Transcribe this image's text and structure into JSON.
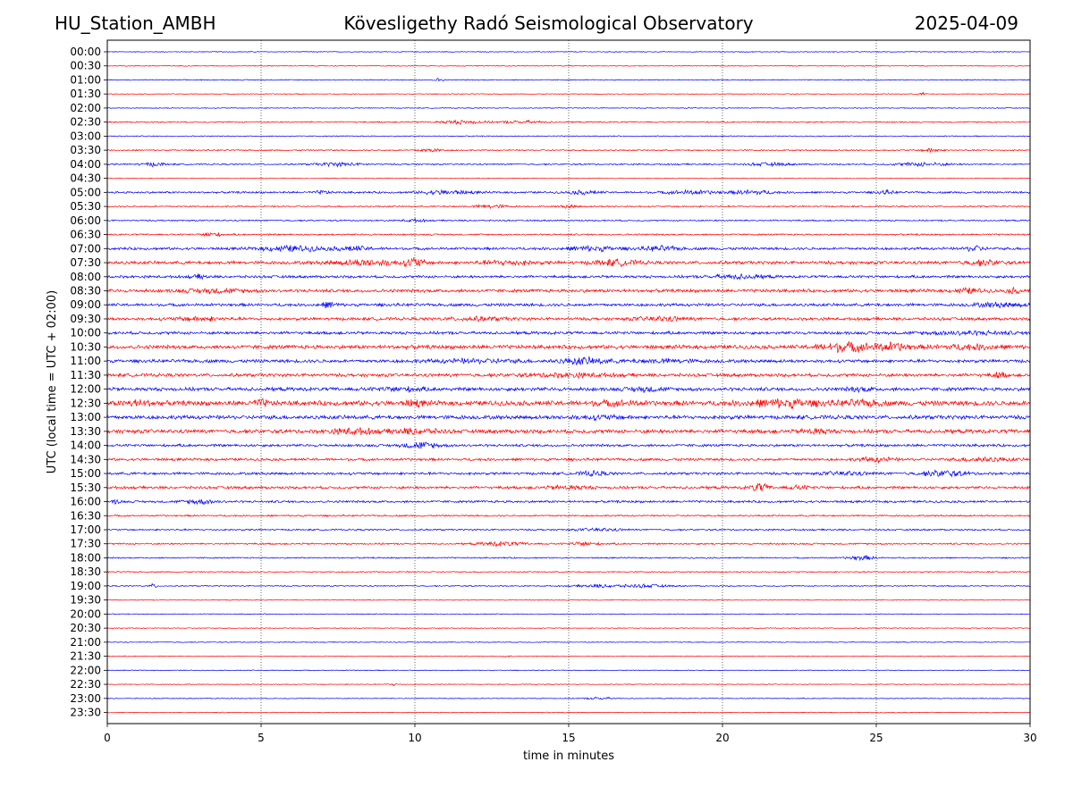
{
  "header": {
    "station": "HU_Station_AMBH",
    "observatory": "Kövesligethy Radó Seismological Observatory",
    "date": "2025-04-09"
  },
  "chart_data": {
    "type": "line",
    "title": "Kövesligethy Radó Seismological Observatory",
    "xlabel": "time in minutes",
    "ylabel": "UTC (local time = UTC + 02:00)",
    "xlim": [
      0,
      30
    ],
    "x_ticks": [
      0,
      5,
      10,
      15,
      20,
      25,
      30
    ],
    "grid": "vertical dotted lines at every 5 minutes",
    "colors": {
      "even_rows": "#0000ff",
      "odd_rows": "#ff0000",
      "grid": "#000000"
    },
    "rows": [
      {
        "label": "00:00",
        "amplitude": 0.5,
        "bursts": []
      },
      {
        "label": "00:30",
        "amplitude": 0.5,
        "bursts": []
      },
      {
        "label": "01:00",
        "amplitude": 0.6,
        "bursts": [
          [
            10.8,
            0.2,
            2
          ]
        ]
      },
      {
        "label": "01:30",
        "amplitude": 0.5,
        "bursts": [
          [
            26.5,
            0.2,
            1.5
          ]
        ]
      },
      {
        "label": "02:00",
        "amplitude": 0.5,
        "bursts": []
      },
      {
        "label": "02:30",
        "amplitude": 0.8,
        "bursts": [
          [
            11.5,
            1.0,
            2
          ],
          [
            13.5,
            1.0,
            1.5
          ]
        ]
      },
      {
        "label": "03:00",
        "amplitude": 0.6,
        "bursts": []
      },
      {
        "label": "03:30",
        "amplitude": 0.8,
        "bursts": [
          [
            10.5,
            0.6,
            1.8
          ],
          [
            26.8,
            0.4,
            2.5
          ]
        ]
      },
      {
        "label": "04:00",
        "amplitude": 0.9,
        "bursts": [
          [
            1.5,
            0.6,
            2
          ],
          [
            7.5,
            1.0,
            2
          ],
          [
            21.5,
            1.0,
            1.6
          ],
          [
            26.5,
            1.2,
            2
          ]
        ]
      },
      {
        "label": "04:30",
        "amplitude": 0.5,
        "bursts": []
      },
      {
        "label": "05:00",
        "amplitude": 1.2,
        "bursts": [
          [
            7,
            0.3,
            2
          ],
          [
            11,
            1.2,
            2.2
          ],
          [
            15.5,
            0.7,
            2
          ],
          [
            19,
            1.2,
            2
          ],
          [
            21,
            0.9,
            2.4
          ],
          [
            25.3,
            0.4,
            2
          ]
        ]
      },
      {
        "label": "05:30",
        "amplitude": 0.9,
        "bursts": [
          [
            12.5,
            0.8,
            2
          ],
          [
            15,
            0.4,
            1.8
          ]
        ]
      },
      {
        "label": "06:00",
        "amplitude": 0.9,
        "bursts": [
          [
            10,
            0.5,
            1.5
          ]
        ]
      },
      {
        "label": "06:30",
        "amplitude": 1.0,
        "bursts": [
          [
            3.4,
            0.4,
            3
          ]
        ]
      },
      {
        "label": "07:00",
        "amplitude": 1.6,
        "bursts": [
          [
            6,
            1.4,
            3
          ],
          [
            8,
            0.8,
            2.5
          ],
          [
            15.8,
            1.2,
            2.4
          ],
          [
            18,
            0.8,
            2.5
          ],
          [
            28.2,
            0.4,
            3.2
          ]
        ]
      },
      {
        "label": "07:30",
        "amplitude": 2.0,
        "bursts": [
          [
            8.5,
            1.6,
            3
          ],
          [
            10,
            0.4,
            5
          ],
          [
            13,
            1.2,
            2.2
          ],
          [
            16.5,
            1.0,
            3
          ],
          [
            28.5,
            0.8,
            2.5
          ]
        ]
      },
      {
        "label": "08:00",
        "amplitude": 1.6,
        "bursts": [
          [
            3,
            0.4,
            2
          ],
          [
            20.5,
            1.2,
            2.2
          ]
        ]
      },
      {
        "label": "08:30",
        "amplitude": 2.0,
        "bursts": [
          [
            3.5,
            1.4,
            2
          ],
          [
            28,
            0.6,
            2.6
          ],
          [
            29.5,
            0.3,
            2.6
          ]
        ]
      },
      {
        "label": "09:00",
        "amplitude": 1.8,
        "bursts": [
          [
            7.2,
            0.4,
            3
          ],
          [
            29,
            1.2,
            2.2
          ]
        ]
      },
      {
        "label": "09:30",
        "amplitude": 1.8,
        "bursts": [
          [
            3,
            1.2,
            2
          ],
          [
            12,
            1.4,
            1.6
          ],
          [
            18,
            1.2,
            2.2
          ]
        ]
      },
      {
        "label": "10:00",
        "amplitude": 1.8,
        "bursts": [
          [
            28,
            2.0,
            1.8
          ]
        ]
      },
      {
        "label": "10:30",
        "amplitude": 2.4,
        "bursts": [
          [
            24,
            1.2,
            5
          ],
          [
            25.5,
            0.8,
            4
          ],
          [
            28,
            1.6,
            2.2
          ]
        ]
      },
      {
        "label": "11:00",
        "amplitude": 2.0,
        "bursts": [
          [
            15.5,
            1.0,
            3.5
          ],
          [
            12,
            2.0,
            1.6
          ],
          [
            18,
            1.6,
            1.6
          ]
        ]
      },
      {
        "label": "11:30",
        "amplitude": 2.0,
        "bursts": [
          [
            15,
            2.0,
            1.8
          ],
          [
            29,
            0.3,
            3
          ]
        ]
      },
      {
        "label": "12:00",
        "amplitude": 2.2,
        "bursts": [
          [
            9.5,
            1.0,
            2
          ],
          [
            17.5,
            0.8,
            2.2
          ],
          [
            24.5,
            0.6,
            2
          ]
        ]
      },
      {
        "label": "12:30",
        "amplitude": 3.0,
        "bursts": [
          [
            1,
            0.8,
            2.6
          ],
          [
            5,
            0.4,
            3
          ],
          [
            10,
            0.4,
            3
          ],
          [
            16.5,
            1.2,
            1.8
          ],
          [
            22,
            1.6,
            3.8
          ],
          [
            24.5,
            1.0,
            2.5
          ]
        ]
      },
      {
        "label": "13:00",
        "amplitude": 2.4,
        "bursts": [
          [
            16,
            1.2,
            1.5
          ]
        ]
      },
      {
        "label": "13:30",
        "amplitude": 2.4,
        "bursts": [
          [
            8,
            1.0,
            3
          ],
          [
            10,
            1.0,
            2.6
          ],
          [
            23,
            0.6,
            2.6
          ]
        ]
      },
      {
        "label": "14:00",
        "amplitude": 1.6,
        "bursts": [
          [
            10.2,
            0.8,
            3.5
          ]
        ]
      },
      {
        "label": "14:30",
        "amplitude": 1.6,
        "bursts": [
          [
            25,
            0.8,
            2.4
          ],
          [
            28.5,
            1.2,
            2.2
          ]
        ]
      },
      {
        "label": "15:00",
        "amplitude": 1.6,
        "bursts": [
          [
            15.8,
            0.6,
            2.4
          ],
          [
            24,
            1.0,
            2
          ],
          [
            27.2,
            1.0,
            3.4
          ]
        ]
      },
      {
        "label": "15:30",
        "amplitude": 1.6,
        "bursts": [
          [
            15,
            1.0,
            2
          ],
          [
            21.2,
            0.4,
            5
          ],
          [
            22.5,
            0.6,
            1.8
          ]
        ]
      },
      {
        "label": "16:00",
        "amplitude": 1.4,
        "bursts": [
          [
            3,
            0.7,
            2.6
          ],
          [
            0.3,
            0.2,
            2.2
          ]
        ]
      },
      {
        "label": "16:30",
        "amplitude": 1.0,
        "bursts": []
      },
      {
        "label": "17:00",
        "amplitude": 1.0,
        "bursts": [
          [
            16,
            1.0,
            1.5
          ]
        ]
      },
      {
        "label": "17:30",
        "amplitude": 1.0,
        "bursts": [
          [
            12.8,
            1.0,
            2.4
          ],
          [
            15.5,
            0.6,
            2.4
          ]
        ]
      },
      {
        "label": "18:00",
        "amplitude": 0.8,
        "bursts": [
          [
            24.5,
            0.6,
            2.6
          ]
        ]
      },
      {
        "label": "18:30",
        "amplitude": 0.7,
        "bursts": []
      },
      {
        "label": "19:00",
        "amplitude": 0.7,
        "bursts": [
          [
            1.5,
            0.2,
            2.2
          ],
          [
            16,
            1.0,
            1.8
          ],
          [
            17.5,
            1.0,
            1.8
          ]
        ]
      },
      {
        "label": "19:30",
        "amplitude": 0.5,
        "bursts": []
      },
      {
        "label": "20:00",
        "amplitude": 0.5,
        "bursts": []
      },
      {
        "label": "20:30",
        "amplitude": 0.5,
        "bursts": []
      },
      {
        "label": "21:00",
        "amplitude": 0.5,
        "bursts": []
      },
      {
        "label": "21:30",
        "amplitude": 0.5,
        "bursts": [
          [
            13,
            0.2,
            1.5
          ]
        ]
      },
      {
        "label": "22:00",
        "amplitude": 0.5,
        "bursts": []
      },
      {
        "label": "22:30",
        "amplitude": 0.5,
        "bursts": [
          [
            9.3,
            0.2,
            1.5
          ]
        ]
      },
      {
        "label": "23:00",
        "amplitude": 0.5,
        "bursts": [
          [
            16,
            0.6,
            1.5
          ]
        ]
      },
      {
        "label": "23:30",
        "amplitude": 0.5,
        "bursts": []
      }
    ]
  }
}
